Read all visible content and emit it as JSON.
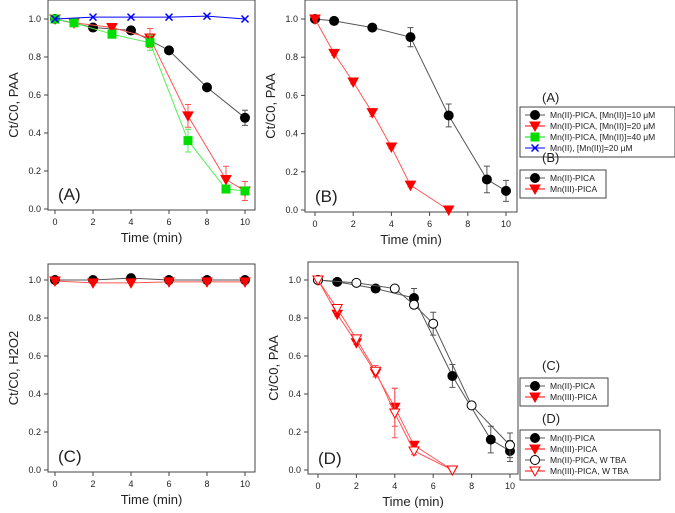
{
  "chart_data": [
    {
      "type": "line",
      "panel_label": "(A)",
      "xlabel": "Time (min)",
      "ylabel": "Ct/C0, PAA",
      "xlim": [
        0,
        10
      ],
      "ylim": [
        0,
        1.1
      ],
      "xticks": [
        0,
        2,
        4,
        6,
        8,
        10
      ],
      "yticks": [
        0,
        0.2,
        0.4,
        0.6,
        0.8,
        1.0
      ],
      "legend_title": "(A)",
      "series": [
        {
          "name": "Mn(II)-PICA, [Mn(II)]=10 μM",
          "color": "#000000",
          "marker": "circle",
          "x": [
            0,
            2,
            4,
            6,
            8,
            10
          ],
          "y": [
            1.0,
            0.955,
            0.94,
            0.835,
            0.64,
            0.48
          ],
          "err": [
            0,
            0.01,
            0.02,
            0.01,
            0.01,
            0.04
          ]
        },
        {
          "name": "Mn(II)-PICA, [Mn(II)]=20 μM",
          "color": "#ff0000",
          "marker": "triangle-down",
          "x": [
            0,
            1,
            3,
            5,
            7,
            9,
            10
          ],
          "y": [
            1.0,
            0.98,
            0.955,
            0.9,
            0.49,
            0.155,
            0.095
          ],
          "err": [
            0,
            0.01,
            0.01,
            0.05,
            0.06,
            0.07,
            0.05
          ]
        },
        {
          "name": "Mn(II)-PICA, [Mn(II)]=40 μM",
          "color": "#00dd00",
          "marker": "square",
          "x": [
            0,
            1,
            3,
            5,
            7,
            9,
            10
          ],
          "y": [
            1.0,
            0.98,
            0.92,
            0.875,
            0.36,
            0.105,
            0.095
          ],
          "err": [
            0,
            0.01,
            0.01,
            0.04,
            0.06,
            0.02,
            0.02
          ]
        },
        {
          "name": "Mn(II), [Mn(II)]=20 μM",
          "color": "#0000ff",
          "marker": "x",
          "x": [
            0,
            2,
            4,
            6,
            8,
            10
          ],
          "y": [
            1.0,
            1.01,
            1.01,
            1.01,
            1.015,
            1.0
          ],
          "err": [
            0,
            0,
            0,
            0,
            0,
            0
          ]
        }
      ]
    },
    {
      "type": "line",
      "panel_label": "(B)",
      "xlabel": "Time (min)",
      "ylabel": "Ct/C0, PAA",
      "xlim": [
        0,
        10
      ],
      "ylim": [
        0,
        1.1
      ],
      "xticks": [
        0,
        2,
        4,
        6,
        8,
        10
      ],
      "yticks": [
        0,
        0.2,
        0.4,
        0.6,
        0.8,
        1.0
      ],
      "legend_title": "(B)",
      "series": [
        {
          "name": "Mn(II)-PICA",
          "color": "#000000",
          "marker": "circle",
          "x": [
            0,
            1,
            3,
            5,
            7,
            9,
            10
          ],
          "y": [
            1.0,
            0.99,
            0.955,
            0.905,
            0.495,
            0.16,
            0.1
          ],
          "err": [
            0,
            0.01,
            0.01,
            0.05,
            0.06,
            0.07,
            0.055
          ]
        },
        {
          "name": "Mn(III)-PICA",
          "color": "#ff0000",
          "marker": "triangle-down",
          "x": [
            0,
            1,
            2,
            3,
            4,
            5,
            7
          ],
          "y": [
            1.0,
            0.82,
            0.67,
            0.51,
            0.33,
            0.13,
            0.0
          ],
          "err": [
            0,
            0.01,
            0.01,
            0.02,
            0.01,
            0.01,
            0
          ]
        }
      ]
    },
    {
      "type": "line",
      "panel_label": "(C)",
      "xlabel": "Time (min)",
      "ylabel": "Ct/C0, H2O2",
      "xlim": [
        0,
        10
      ],
      "ylim": [
        0,
        1.1
      ],
      "xticks": [
        0,
        2,
        4,
        6,
        8,
        10
      ],
      "yticks": [
        0,
        0.2,
        0.4,
        0.6,
        0.8,
        1.0
      ],
      "legend_title": "(C)",
      "series": [
        {
          "name": "Mn(II)-PICA",
          "color": "#000000",
          "marker": "circle",
          "x": [
            0,
            2,
            4,
            6,
            8,
            10
          ],
          "y": [
            1.0,
            1.0,
            1.01,
            1.0,
            1.0,
            1.0
          ],
          "err": [
            0,
            0,
            0,
            0,
            0,
            0
          ]
        },
        {
          "name": "Mn(III)-PICA",
          "color": "#ff0000",
          "marker": "triangle-down",
          "x": [
            0,
            2,
            4,
            6,
            8,
            10
          ],
          "y": [
            0.995,
            0.985,
            0.985,
            0.99,
            0.99,
            0.99
          ],
          "err": [
            0,
            0,
            0,
            0,
            0,
            0
          ]
        }
      ]
    },
    {
      "type": "line",
      "panel_label": "(D)",
      "xlabel": "Time (min)",
      "ylabel": "Ct/C0, PAA",
      "xlim": [
        0,
        10
      ],
      "ylim": [
        0,
        1.1
      ],
      "xticks": [
        0,
        2,
        4,
        6,
        8,
        10
      ],
      "yticks": [
        0,
        0.2,
        0.4,
        0.6,
        0.8,
        1.0
      ],
      "legend_title": "(D)",
      "series": [
        {
          "name": "Mn(II)-PICA",
          "color": "#000000",
          "marker": "circle",
          "x": [
            0,
            1,
            3,
            5,
            7,
            9,
            10
          ],
          "y": [
            1.0,
            0.99,
            0.955,
            0.905,
            0.495,
            0.16,
            0.1
          ],
          "err": [
            0,
            0.01,
            0.01,
            0.05,
            0.06,
            0.07,
            0.055
          ]
        },
        {
          "name": "Mn(III)-PICA",
          "color": "#ff0000",
          "marker": "triangle-down",
          "x": [
            0,
            1,
            2,
            3,
            4,
            5,
            7
          ],
          "y": [
            1.0,
            0.82,
            0.67,
            0.51,
            0.33,
            0.13,
            0.0
          ],
          "err": [
            0,
            0.01,
            0.01,
            0.02,
            0.1,
            0.01,
            0
          ]
        },
        {
          "name": "Mn(II)-PICA, W TBA",
          "color": "#000000",
          "marker": "circle-open",
          "x": [
            0,
            2,
            4,
            5,
            6,
            8,
            10
          ],
          "y": [
            1.0,
            0.985,
            0.955,
            0.87,
            0.77,
            0.34,
            0.13
          ],
          "err": [
            0,
            0,
            0,
            0.02,
            0.06,
            0.02,
            0.065
          ]
        },
        {
          "name": "Mn(III)-PICA, W TBA",
          "color": "#ff0000",
          "marker": "triangle-down-open",
          "x": [
            0,
            1,
            2,
            3,
            4,
            5,
            7
          ],
          "y": [
            1.0,
            0.85,
            0.69,
            0.52,
            0.3,
            0.1,
            0.0
          ],
          "err": [
            0,
            0.02,
            0.02,
            0.03,
            0.13,
            0.02,
            0
          ]
        }
      ]
    }
  ]
}
